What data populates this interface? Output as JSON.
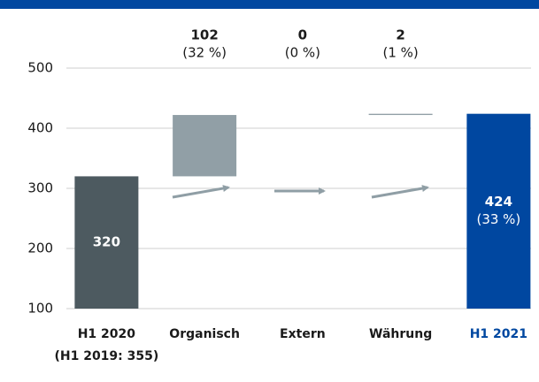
{
  "chart_data": {
    "type": "waterfall",
    "categories": [
      "H1 2020",
      "Organisch",
      "Extern",
      "Währung",
      "H1 2021"
    ],
    "category_note": "(H1 2019: 355)",
    "values": [
      320,
      102,
      0,
      2,
      424
    ],
    "shares": [
      null,
      "(32 %)",
      "(0 %)",
      "(1 %)",
      "(33 %)"
    ],
    "colors": [
      "#4d5a60",
      "#919fa6",
      "#919fa6",
      "#919fa6",
      "#0047a0"
    ],
    "ylim": [
      100,
      500
    ],
    "yticks": [
      100,
      200,
      300,
      400,
      500
    ],
    "grid": true
  }
}
